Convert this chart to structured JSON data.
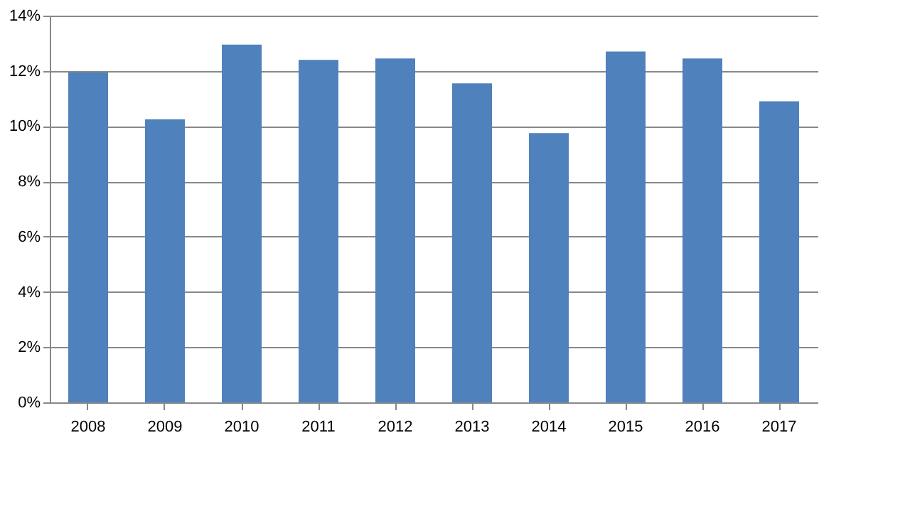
{
  "chart_data": {
    "type": "bar",
    "categories": [
      "2008",
      "2009",
      "2010",
      "2011",
      "2012",
      "2013",
      "2014",
      "2015",
      "2016",
      "2017"
    ],
    "values": [
      11.95,
      10.25,
      12.95,
      12.4,
      12.45,
      11.55,
      9.75,
      12.7,
      12.45,
      10.9
    ],
    "color": "#4f81bd",
    "ylim": [
      0,
      14
    ],
    "yticks": [
      {
        "value": 0,
        "label": "0%"
      },
      {
        "value": 2,
        "label": "2%"
      },
      {
        "value": 4,
        "label": "4%"
      },
      {
        "value": 6,
        "label": "6%"
      },
      {
        "value": 8,
        "label": "8%"
      },
      {
        "value": 10,
        "label": "10%"
      },
      {
        "value": 12,
        "label": "12%"
      },
      {
        "value": 14,
        "label": "14%"
      }
    ],
    "grid": "y"
  }
}
